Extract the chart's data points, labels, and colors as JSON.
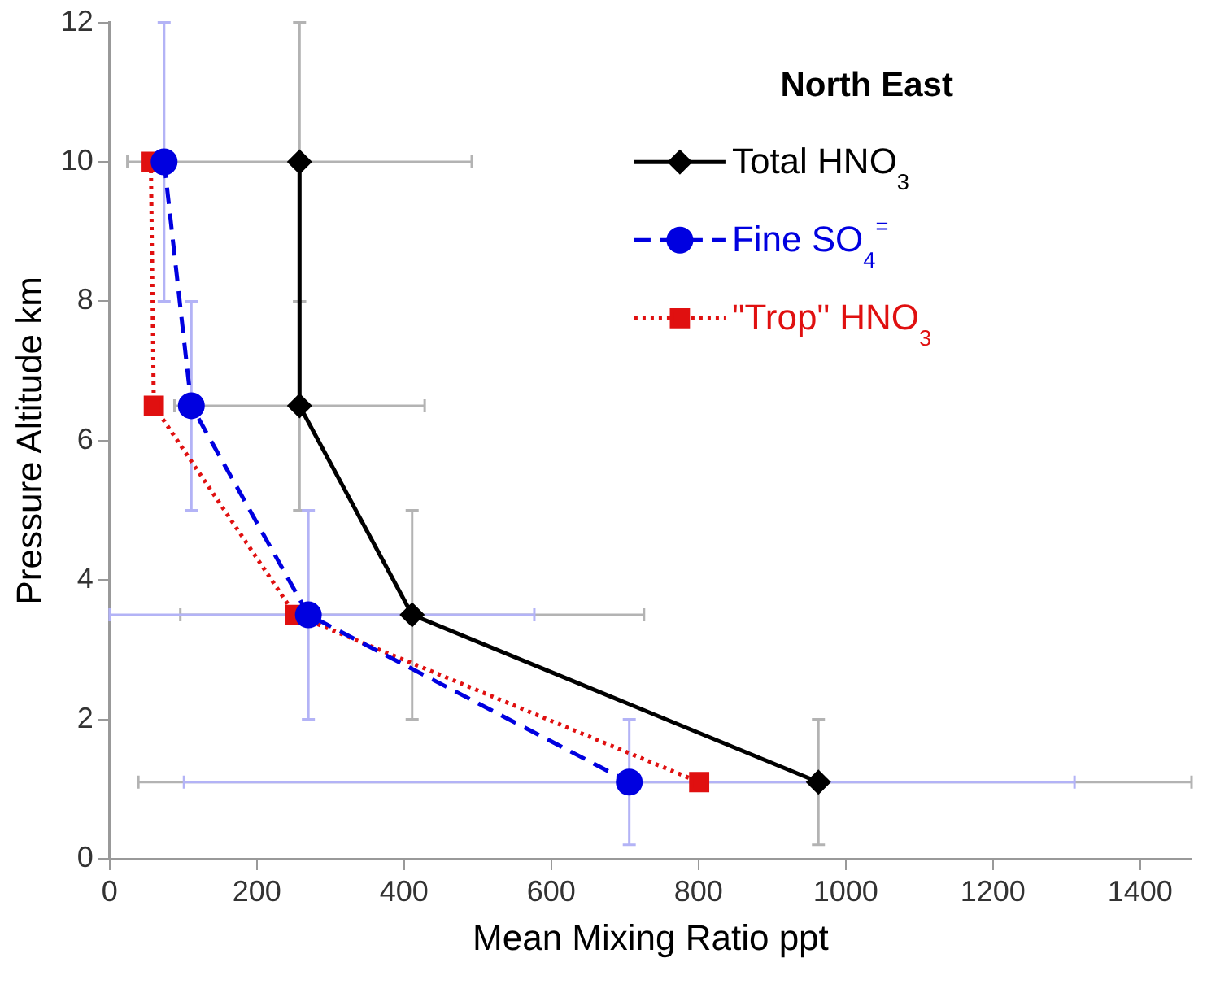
{
  "chart_data": {
    "type": "line",
    "title": "North East",
    "xlabel": "Mean Mixing Ratio ppt",
    "ylabel": "Pressure Altitude km",
    "xlim": [
      0,
      1470
    ],
    "xticks": [
      0,
      200,
      400,
      600,
      800,
      1000,
      1200,
      1400
    ],
    "ylim": [
      0,
      12
    ],
    "yticks": [
      0,
      2,
      4,
      6,
      8,
      10,
      12
    ],
    "grid": false,
    "legend": "top right",
    "series": [
      {
        "name": "Total HNO$_{3}$",
        "color": "#000000",
        "marker": "diamond",
        "line_style": "solid",
        "x": [
          258,
          258,
          411,
          963
        ],
        "values": [
          10,
          6.5,
          3.5,
          1.1
        ],
        "errors": [
          2,
          1.5,
          1.5,
          0.9
        ],
        "xerrors": [
          234,
          170,
          315,
          [
            39,
            1470
          ]
        ]
      },
      {
        "name": "Fine SO$_{4}$$^{=}$",
        "color": "#0000e0",
        "marker": "circle",
        "line_style": "dashed",
        "x": [
          74,
          111,
          270,
          706
        ],
        "values": [
          10,
          6.5,
          3.5,
          1.1
        ],
        "errors": [
          2,
          1.5,
          1.5,
          0.9
        ],
        "xerrors": [
          null,
          null,
          [
            0,
            577
          ],
          605
        ]
      },
      {
        "name": "\"Trop\" HNO$_{3}$",
        "color": "#e01010",
        "marker": "square",
        "line_style": "dotted",
        "x": [
          56,
          60,
          252,
          801
        ],
        "values": [
          10,
          6.5,
          3.5,
          1.1
        ]
      }
    ]
  }
}
